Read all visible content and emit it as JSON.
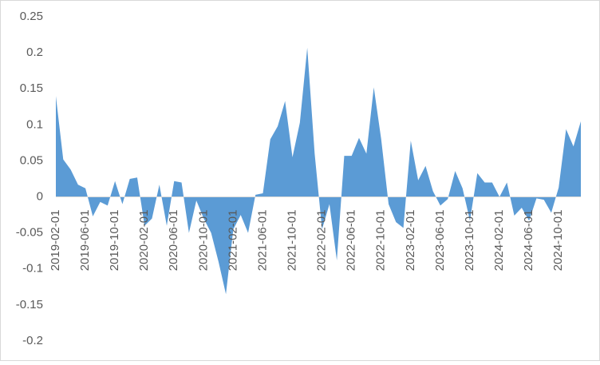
{
  "chart_data": {
    "type": "area",
    "color": "#5b9bd5",
    "categories": [
      "2019-02-01",
      null,
      null,
      null,
      "2019-06-01",
      null,
      null,
      null,
      "2019-10-01",
      null,
      null,
      null,
      "2020-02-01",
      null,
      null,
      null,
      "2020-06-01",
      null,
      null,
      null,
      "2020-10-01",
      null,
      null,
      null,
      "2021-02-01",
      null,
      null,
      null,
      "2021-06-01",
      null,
      null,
      null,
      "2021-10-01",
      null,
      null,
      null,
      "2022-02-01",
      null,
      null,
      null,
      "2022-06-01",
      null,
      null,
      null,
      "2022-10-01",
      null,
      null,
      null,
      "2023-02-01",
      null,
      null,
      null,
      "2023-06-01",
      null,
      null,
      null,
      "2023-10-01",
      null,
      null,
      null,
      "2024-02-01",
      null,
      null,
      null,
      "2024-06-01",
      null,
      null,
      null,
      "2024-10-01",
      null,
      null,
      null
    ],
    "values": [
      0.14,
      0.052,
      0.038,
      0.017,
      0.012,
      -0.027,
      -0.007,
      -0.012,
      0.022,
      -0.01,
      0.025,
      0.027,
      -0.04,
      -0.03,
      0.017,
      -0.04,
      0.022,
      0.02,
      -0.05,
      -0.005,
      -0.03,
      -0.05,
      -0.09,
      -0.135,
      -0.045,
      -0.025,
      -0.05,
      0.003,
      0.005,
      0.08,
      0.098,
      0.133,
      0.055,
      0.103,
      0.207,
      0.06,
      -0.045,
      -0.01,
      -0.088,
      0.057,
      0.057,
      0.082,
      0.06,
      0.152,
      0.08,
      -0.01,
      -0.035,
      -0.043,
      0.078,
      0.023,
      0.043,
      0.008,
      -0.012,
      -0.003,
      0.036,
      0.012,
      -0.033,
      0.033,
      0.02,
      0.02,
      0.0,
      0.02,
      -0.026,
      -0.015,
      -0.033,
      -0.002,
      -0.004,
      -0.022,
      0.013,
      0.094,
      0.07,
      0.105
    ],
    "ylim": [
      -0.2,
      0.25
    ],
    "yticks": [
      0.25,
      0.2,
      0.15,
      0.1,
      0.05,
      0,
      -0.05,
      -0.1,
      -0.15,
      -0.2
    ]
  }
}
